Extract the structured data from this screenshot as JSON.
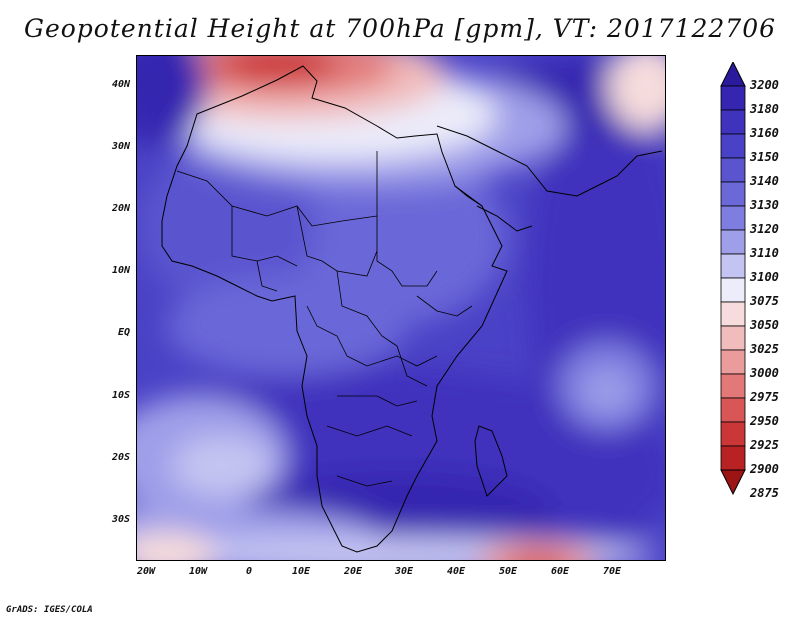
{
  "title": "Geopotential Height at 700hPa [gpm], VT: 2017122706",
  "credit": "GrADS: IGES/COLA",
  "lat_labels": [
    "40N",
    "30N",
    "20N",
    "10N",
    "EQ",
    "10S",
    "20S",
    "30S"
  ],
  "lon_labels": [
    "20W",
    "10W",
    "0",
    "10E",
    "20E",
    "30E",
    "40E",
    "50E",
    "60E",
    "70E"
  ],
  "colorbar": {
    "levels": [
      "3200",
      "3180",
      "3160",
      "3150",
      "3140",
      "3130",
      "3120",
      "3110",
      "3100",
      "3075",
      "3050",
      "3025",
      "3000",
      "2975",
      "2950",
      "2925",
      "2900",
      "2875"
    ],
    "colors": [
      "#2a1a9c",
      "#3525b0",
      "#3f33bd",
      "#4a42c6",
      "#5a55cf",
      "#6b68d8",
      "#7e7de0",
      "#9f9fe9",
      "#c4c4f2",
      "#ececfa",
      "#f6dcdc",
      "#f1bcbc",
      "#ea9c9c",
      "#e27878",
      "#d85656",
      "#cb3636",
      "#b92222",
      "#9c1414"
    ]
  }
}
